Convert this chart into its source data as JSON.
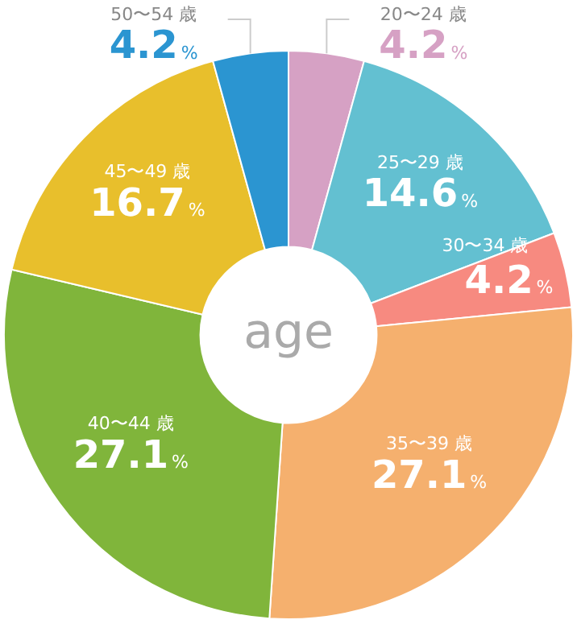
{
  "chart_data": {
    "type": "donut",
    "title": "age",
    "categories": [
      "20〜24 歳",
      "25〜29 歳",
      "30〜34 歳",
      "35〜39 歳",
      "40〜44 歳",
      "45〜49 歳",
      "50〜54 歳"
    ],
    "values": [
      4.2,
      14.6,
      4.2,
      27.1,
      27.1,
      16.7,
      4.2
    ],
    "colors": [
      "#d6a1c4",
      "#63c0d1",
      "#f78a80",
      "#f5b06e",
      "#80b53b",
      "#e8bf2c",
      "#2b95d1"
    ],
    "value_labels": [
      "4.2%",
      "14.6%",
      "4.2%",
      "27.1%",
      "27.1%",
      "16.7%",
      "4.2%"
    ]
  }
}
